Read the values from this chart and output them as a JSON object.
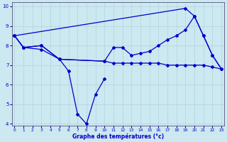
{
  "xlabel": "Graphe des températures (°c)",
  "background_color": "#cce8f0",
  "grid_color": "#b0d4e0",
  "line_color": "#0000cc",
  "ylim": [
    4,
    10
  ],
  "xlim": [
    0,
    23
  ],
  "yticks": [
    4,
    5,
    6,
    7,
    8,
    9,
    10
  ],
  "xticks": [
    0,
    1,
    2,
    3,
    4,
    5,
    6,
    7,
    8,
    9,
    10,
    11,
    12,
    13,
    14,
    15,
    16,
    17,
    18,
    19,
    20,
    21,
    22,
    23
  ],
  "line_zigzag_x": [
    0,
    1,
    3,
    5,
    6,
    7,
    8,
    9,
    10
  ],
  "line_zigzag_y": [
    8.5,
    7.9,
    7.8,
    7.3,
    6.7,
    4.5,
    4.0,
    5.5,
    6.3
  ],
  "line_flat_x": [
    0,
    1,
    3,
    5,
    10,
    11,
    12,
    13,
    14,
    15,
    16,
    17,
    18,
    19,
    20,
    21,
    22,
    23
  ],
  "line_flat_y": [
    8.5,
    7.9,
    8.0,
    7.3,
    7.2,
    7.1,
    7.1,
    7.1,
    7.1,
    7.1,
    7.1,
    7.0,
    7.0,
    7.0,
    7.0,
    7.0,
    6.9,
    6.8
  ],
  "line_upper_x": [
    0,
    19,
    20,
    21,
    22,
    23
  ],
  "line_upper_y": [
    8.5,
    9.9,
    9.5,
    8.5,
    7.5,
    6.8
  ],
  "line_mid_x": [
    0,
    1,
    3,
    5,
    10,
    11,
    12,
    13,
    14,
    15,
    16,
    17,
    18,
    19,
    20,
    21,
    22,
    23
  ],
  "line_mid_y": [
    8.5,
    7.9,
    8.0,
    7.3,
    7.2,
    7.9,
    7.9,
    7.5,
    7.6,
    7.7,
    8.0,
    8.3,
    8.5,
    8.8,
    9.5,
    8.5,
    7.5,
    6.8
  ]
}
